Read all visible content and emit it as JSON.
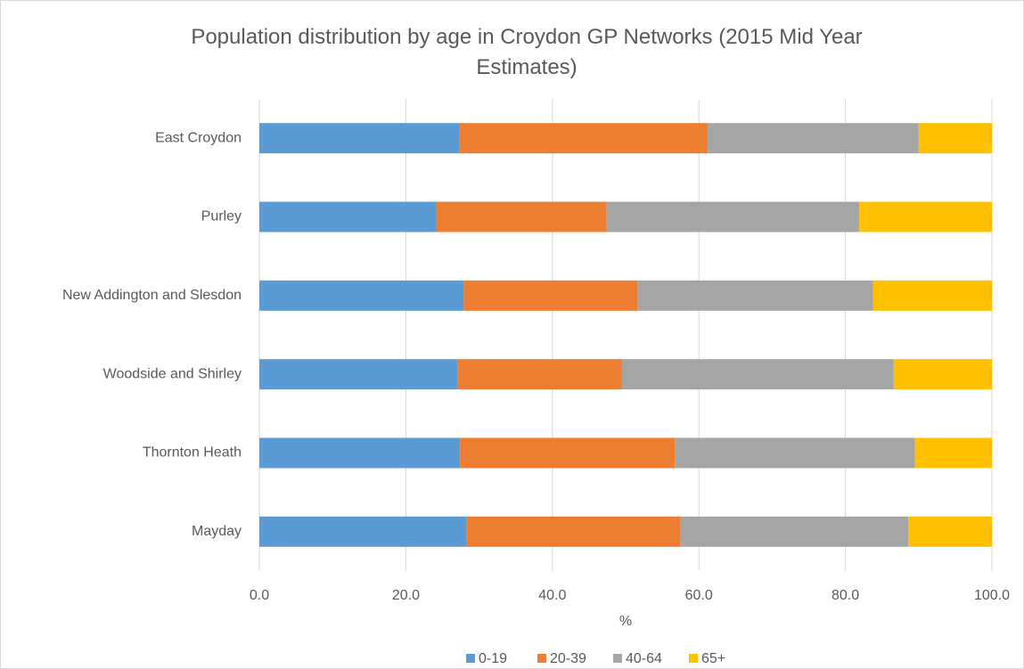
{
  "chart_data": {
    "type": "stacked_bar_horizontal",
    "title": "Population distribution by age in Croydon GP Networks (2015 Mid Year Estimates)",
    "xlabel": "%",
    "categories": [
      "East Croydon",
      "Purley",
      "New Addington and Slesdon",
      "Woodside and Shirley",
      "Thornton Heath",
      "Mayday"
    ],
    "series": [
      {
        "name": "0-19",
        "color": "#5b9bd5",
        "values": [
          27.3,
          24.2,
          27.9,
          27.1,
          27.4,
          28.3
        ]
      },
      {
        "name": "20-39",
        "color": "#ed7d31",
        "values": [
          33.9,
          23.2,
          23.7,
          22.4,
          29.3,
          29.2
        ]
      },
      {
        "name": "40-64",
        "color": "#a5a5a5",
        "values": [
          28.8,
          34.5,
          32.2,
          37.1,
          32.8,
          31.1
        ]
      },
      {
        "name": "65+",
        "color": "#ffc000",
        "values": [
          10.0,
          18.1,
          16.2,
          13.4,
          10.5,
          11.4
        ]
      }
    ],
    "xlim": [
      0,
      100
    ],
    "xticks": [
      {
        "value": 0,
        "label": "0.0"
      },
      {
        "value": 20,
        "label": "20.0"
      },
      {
        "value": 40,
        "label": "40.0"
      },
      {
        "value": 60,
        "label": "60.0"
      },
      {
        "value": 80,
        "label": "80.0"
      },
      {
        "value": 100,
        "label": "100.0"
      }
    ],
    "grid": true,
    "legend": "bottom"
  }
}
